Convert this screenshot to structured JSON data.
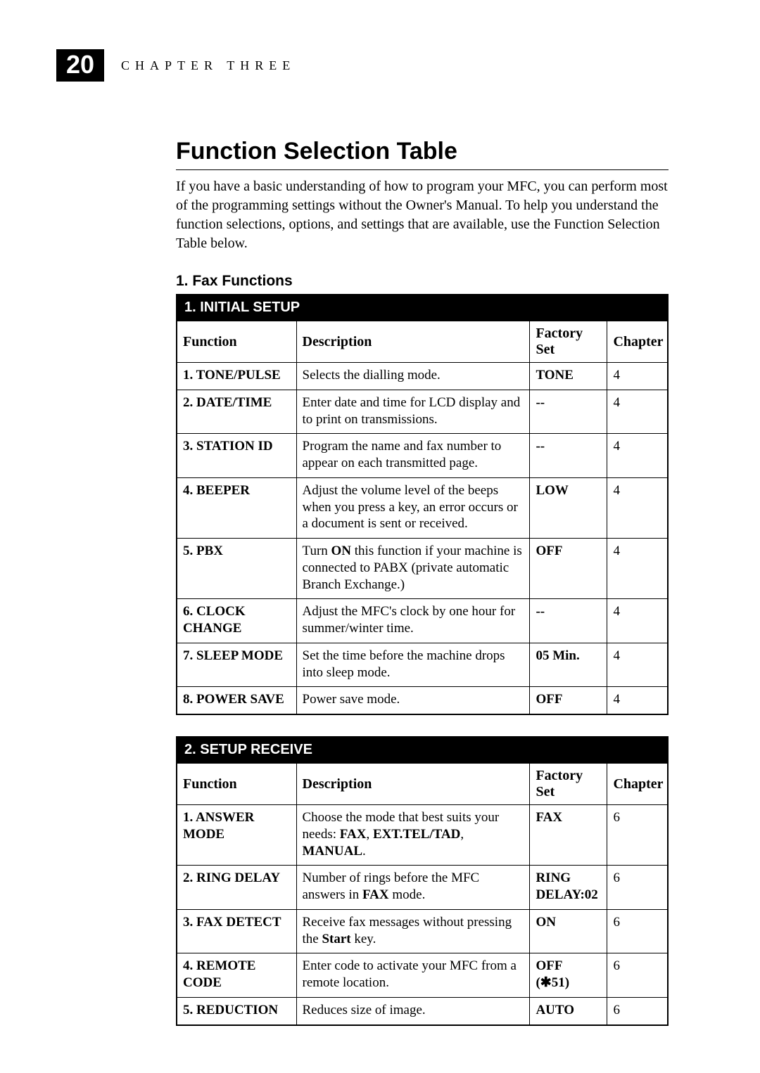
{
  "page_number": "20",
  "chapter_label": "CHAPTER THREE",
  "title": "Function Selection Table",
  "intro": "If you have a basic understanding of how to program your MFC, you can perform most of the programming settings without the Owner's Manual. To help you understand the function selections, options, and settings that are available, use the Function Selection Table below.",
  "section_heading": "1. Fax Functions",
  "col_labels": {
    "function": "Function",
    "description": "Description",
    "factory_set": "Factory Set",
    "chapter": "Chapter"
  },
  "tables": [
    {
      "band": "1. INITIAL SETUP",
      "rows": [
        {
          "num": "1.",
          "name": "TONE/PULSE",
          "desc_html": "Selects the dialling mode.",
          "fs": "TONE",
          "fs_small": false,
          "ch": "4"
        },
        {
          "num": "2.",
          "name": "DATE/TIME",
          "desc_html": "Enter date and time for LCD display and to print on transmissions.",
          "fs": "--",
          "fs_small": false,
          "ch": "4"
        },
        {
          "num": "3.",
          "name": "STATION ID",
          "desc_html": "Program the name and fax number to appear on each transmitted page.",
          "fs": "--",
          "fs_small": false,
          "ch": "4"
        },
        {
          "num": "4.",
          "name": "BEEPER",
          "desc_html": "Adjust the volume level of the beeps when you press a key, an error occurs or a document is sent or received.",
          "fs": "LOW",
          "fs_small": false,
          "ch": "4"
        },
        {
          "num": "5.",
          "name": "PBX",
          "desc_html": "Turn <b>ON</b> this function if your machine is connected to PABX (private automatic Branch Exchange.)",
          "fs": "OFF",
          "fs_small": false,
          "ch": "4"
        },
        {
          "num": "6.",
          "name": "CLOCK CHANGE",
          "desc_html": "Adjust the MFC's clock by one hour for summer/winter time.",
          "fs": "--",
          "fs_small": false,
          "ch": "4"
        },
        {
          "num": "7.",
          "name": "SLEEP MODE",
          "desc_html": "Set the time before the machine drops into sleep mode.",
          "fs": "05 Min.",
          "fs_small": false,
          "ch": "4"
        },
        {
          "num": "8.",
          "name": "POWER SAVE",
          "desc_html": "Power save mode.",
          "fs": "OFF",
          "fs_small": false,
          "ch": "4"
        }
      ]
    },
    {
      "band": "2. SETUP RECEIVE",
      "rows": [
        {
          "num": "1.",
          "name": "ANSWER MODE",
          "desc_html": "Choose the mode that best suits your needs: <b>FAX</b>, <b>EXT.TEL/TAD</b>, <b>MANUAL</b>.",
          "fs": "FAX",
          "fs_small": false,
          "ch": "6"
        },
        {
          "num": "2.",
          "name": "RING DELAY",
          "desc_html": "Number of rings before the MFC answers in <b>FAX</b> mode.",
          "fs": "RING DELAY:02",
          "fs_small": true,
          "ch": "6"
        },
        {
          "num": "3.",
          "name": "FAX DETECT",
          "desc_html": "Receive fax messages without pressing the <b>Start</b> key.",
          "fs": "ON",
          "fs_small": false,
          "ch": "6"
        },
        {
          "num": "4.",
          "name": "REMOTE CODE",
          "desc_html": "Enter code to activate your MFC from a remote location.",
          "fs": "OFF<br>(✱51)",
          "fs_small": false,
          "ch": "6"
        },
        {
          "num": "5.",
          "name": "REDUCTION",
          "desc_html": "Reduces size of image.",
          "fs": "AUTO",
          "fs_small": false,
          "ch": "6"
        }
      ]
    }
  ]
}
